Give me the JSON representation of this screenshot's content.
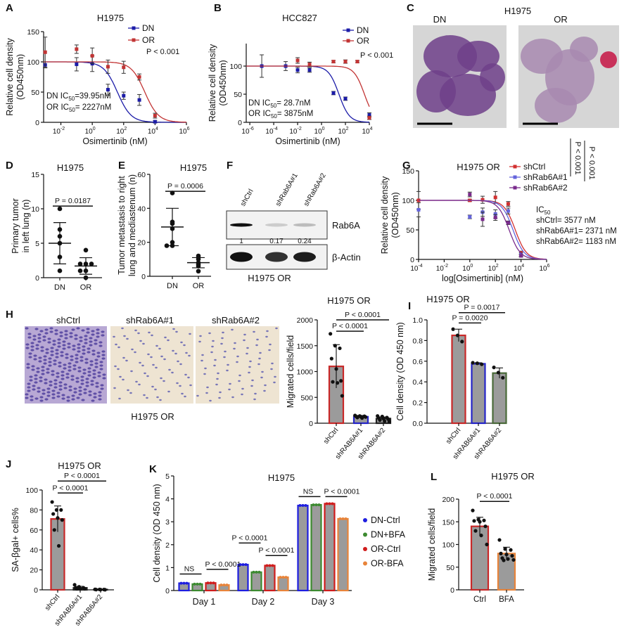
{
  "chart_data": [
    {
      "panel": "A",
      "type": "dose_response",
      "title": "H1975",
      "xlabel": "Osimertinib (nM)",
      "ylabel": "Relative cell density",
      "ylabel2": "(OD450nm)",
      "xtick_base": "10",
      "xticks": [
        "-2",
        "0",
        "2",
        "4",
        "6"
      ],
      "yticks": [
        "0",
        "50",
        "100",
        "150"
      ],
      "ylim": [
        0,
        150
      ],
      "series": [
        {
          "name": "DN",
          "color": "#1c1ca8",
          "ic50": 39.95,
          "points": [
            [
              0.001,
              95,
              5
            ],
            [
              0.1,
              96,
              11
            ],
            [
              1,
              97,
              13
            ],
            [
              10,
              54,
              9
            ],
            [
              100,
              44,
              6
            ],
            [
              1000,
              37,
              9
            ],
            [
              10000,
              1,
              2
            ]
          ]
        },
        {
          "name": "OR",
          "color": "#c23434",
          "ic50": 2227,
          "points": [
            [
              0.001,
              116,
              25
            ],
            [
              0.1,
              121,
              7
            ],
            [
              1,
              110,
              13
            ],
            [
              10,
              92,
              11
            ],
            [
              100,
              91,
              10
            ],
            [
              1000,
              75,
              5
            ],
            [
              10000,
              11,
              4
            ]
          ]
        }
      ],
      "notes": [
        "P < 0.001"
      ],
      "ic50_lines": [
        {
          "pre": "DN IC",
          "sub": "50",
          "post": "=39.95nM"
        },
        {
          "pre": "OR IC",
          "sub": "50",
          "post": "= 2227nM"
        }
      ]
    },
    {
      "panel": "B",
      "type": "dose_response",
      "title": "HCC827",
      "xlabel": "Osimertinib (nM)",
      "ylabel": "Relative cell density",
      "ylabel2": "(OD450nm)",
      "xtick_base": "10",
      "xticks": [
        "-6",
        "-4",
        "-2",
        "0",
        "2",
        "4"
      ],
      "yticks": [
        "0",
        "50",
        "100"
      ],
      "ylim": [
        0,
        140
      ],
      "series": [
        {
          "name": "DN",
          "color": "#1c1ca8",
          "ic50": 28.7,
          "points": [
            [
              1e-05,
              100,
              20
            ],
            [
              0.001,
              100,
              8
            ],
            [
              0.01,
              93,
              5
            ],
            [
              0.1,
              93,
              4
            ],
            [
              10,
              52,
              3
            ],
            [
              100,
              42,
              3
            ],
            [
              10000,
              13,
              4
            ]
          ]
        },
        {
          "name": "OR",
          "color": "#c23434",
          "ic50": 3875,
          "points": [
            [
              0.01,
              110,
              5
            ],
            [
              0.1,
              103,
              4
            ],
            [
              10,
              108,
              2
            ],
            [
              100,
              108,
              3
            ],
            [
              1000,
              108,
              2
            ],
            [
              10000,
              8,
              3
            ]
          ]
        }
      ],
      "notes": [
        "P < 0.001"
      ],
      "ic50_lines": [
        {
          "pre": "DN IC",
          "sub": "50",
          "post": "= 28.7nM"
        },
        {
          "pre": "OR IC",
          "sub": "50",
          "post": "= 3875nM"
        }
      ]
    },
    {
      "panel": "C",
      "type": "histology",
      "title": "H1975",
      "labels": [
        "DN",
        "OR"
      ]
    },
    {
      "panel": "D",
      "type": "dot",
      "title": "H1975",
      "ylabel": "Primary tumor",
      "ylabel2": "in left lung (n)",
      "yticks": [
        "0",
        "5",
        "10",
        "15"
      ],
      "ylim": [
        0,
        15
      ],
      "categories": [
        "DN",
        "OR"
      ],
      "groups": [
        {
          "points": [
            10,
            7,
            6,
            5,
            3,
            1
          ],
          "mean": 5,
          "sd": 3
        },
        {
          "points": [
            4,
            2,
            2,
            2,
            1,
            1,
            0
          ],
          "mean": 1.7,
          "sd": 1.2
        }
      ],
      "sig": [
        {
          "from": 0,
          "to": 1,
          "level": 10.4,
          "label": "P = 0.0187"
        }
      ]
    },
    {
      "panel": "E",
      "type": "dot",
      "title": "H1975",
      "ylabel": "Tumor metastasis to right",
      "ylabel2": "lung and mediastenum (n)",
      "yticks": [
        "0",
        "20",
        "40",
        "60"
      ],
      "ylim": [
        0,
        60
      ],
      "categories": [
        "DN",
        "OR"
      ],
      "groups": [
        {
          "points": [
            49,
            32,
            31,
            28,
            20,
            18,
            18
          ],
          "mean": 29,
          "sd": 11
        },
        {
          "points": [
            12,
            11,
            10,
            8,
            7,
            6,
            3
          ],
          "mean": 8,
          "sd": 3
        }
      ],
      "sig": [
        {
          "from": 0,
          "to": 1,
          "level": 50,
          "label": "P = 0.0006"
        }
      ]
    },
    {
      "panel": "F",
      "type": "western_blot",
      "lanes": [
        "shCtrl",
        "shRab6A#1",
        "shRab6A#2"
      ],
      "bands": [
        {
          "name": "Rab6A",
          "intensity": [
            1,
            0.17,
            0.24
          ]
        },
        {
          "name": "β-Actin",
          "intensity": [
            1,
            0.85,
            0.95
          ]
        }
      ],
      "quant": [
        "1",
        "0.17",
        "0.24"
      ],
      "caption": "H1975 OR"
    },
    {
      "panel": "G",
      "type": "dose_response",
      "title": "H1975 OR",
      "xlabel": "log[Osimertinib] (nM)",
      "ylabel": "Relative cell density",
      "ylabel2": "(OD450nm)",
      "xtick_base": "10",
      "xticks": [
        "-4",
        "-2",
        "0",
        "2",
        "4",
        "6"
      ],
      "yticks": [
        "0",
        "50",
        "100",
        "150"
      ],
      "ylim": [
        0,
        150
      ],
      "series": [
        {
          "name": "shCtrl",
          "color": "#d23030",
          "ic50": 3577,
          "points": [
            [
              0.0001,
              100,
              15
            ],
            [
              1,
              100,
              2
            ],
            [
              10,
              101,
              6
            ],
            [
              100,
              105,
              10
            ],
            [
              1000,
              94,
              4
            ],
            [
              10000,
              11,
              3
            ]
          ]
        },
        {
          "name": "shRab6A#1",
          "color": "#6464dc",
          "ic50": 2371,
          "points": [
            [
              0.0001,
              84,
              12
            ],
            [
              1,
              72,
              3
            ],
            [
              10,
              80,
              7
            ],
            [
              100,
              77,
              7
            ],
            [
              1000,
              82,
              5
            ],
            [
              10000,
              8,
              3
            ]
          ]
        },
        {
          "name": "shRab6A#2",
          "color": "#7a2b8c",
          "ic50": 1183,
          "points": [
            [
              1,
              110,
              4
            ],
            [
              10,
              68,
              12
            ],
            [
              100,
              71,
              5
            ],
            [
              1000,
              62,
              3
            ],
            [
              10000,
              6,
              2
            ]
          ]
        }
      ],
      "notes": [
        "P < 0.001",
        "P < 0.001"
      ],
      "ic50_header": {
        "pre": "IC",
        "sub": "50"
      },
      "ic50_lines": [
        {
          "pre": "shCtrl= 3577 nM",
          "sub": "",
          "post": ""
        },
        {
          "pre": "shRab6A#1= 2371 nM",
          "sub": "",
          "post": ""
        },
        {
          "pre": "shRab6A#2= 1183 nM",
          "sub": "",
          "post": ""
        }
      ]
    },
    {
      "panel": "H",
      "type": "transwell_images",
      "labels": [
        "shCtrl",
        "shRab6A#1",
        "shRab6A#2"
      ],
      "caption": "H1975 OR"
    },
    {
      "panel": "H",
      "type": "bar",
      "title": "H1975 OR",
      "ylabel": "Migrated cells/field",
      "yticks": [
        "0",
        "500",
        "1000",
        "1500",
        "2000"
      ],
      "ylim": [
        0,
        2000
      ],
      "categories": [
        "shCtrl",
        "shRAB6A#1",
        "shRAB6A#2"
      ],
      "groups": [
        {
          "edge": "#c82828",
          "mean": 1100,
          "sd": 420,
          "points": [
            1730,
            1500,
            1450,
            1250,
            1050,
            820,
            800,
            780,
            530
          ]
        },
        {
          "edge": "#2424c8",
          "mean": 125,
          "sd": 25,
          "points": [
            150,
            140,
            135,
            130,
            125,
            120,
            110,
            100
          ]
        },
        {
          "edge": "#222222",
          "mean": 90,
          "sd": 30,
          "points": [
            140,
            130,
            110,
            100,
            90,
            80,
            60,
            40,
            30
          ]
        }
      ],
      "sig": [
        {
          "from": 0,
          "to": 1,
          "level": 1780,
          "label": "P < 0.0001"
        },
        {
          "from": 0,
          "to": 2,
          "level": 2000,
          "label": "P < 0.0001"
        }
      ]
    },
    {
      "panel": "I",
      "type": "bar",
      "title": "H1975 OR",
      "ylabel": "Cell density (OD 450 nm)",
      "yticks": [
        "0.0",
        "0.2",
        "0.4",
        "0.6",
        "0.8",
        "1.0"
      ],
      "ylim": [
        0,
        1
      ],
      "categories": [
        "shCtrl",
        "shRAB6A#1",
        "shRAB6A#2"
      ],
      "groups": [
        {
          "edge": "#c82828",
          "mean": 0.85,
          "sd": 0.06,
          "points": [
            0.91,
            0.85,
            0.79
          ]
        },
        {
          "edge": "#2424c8",
          "mean": 0.575,
          "sd": 0.01,
          "points": [
            0.585,
            0.58,
            0.57
          ]
        },
        {
          "edge": "#4a6a3a",
          "mean": 0.485,
          "sd": 0.05,
          "points": [
            0.54,
            0.49,
            0.44
          ]
        }
      ],
      "sig": [
        {
          "from": 0,
          "to": 1,
          "level": 0.97,
          "label": "P = 0.0020"
        },
        {
          "from": 0,
          "to": 2,
          "level": 1.07,
          "label": "P = 0.0017"
        }
      ]
    },
    {
      "panel": "J",
      "type": "bar",
      "title": "H1975 OR",
      "ylabel": "SA-βgal+ cells%",
      "yticks": [
        "0",
        "20",
        "40",
        "60",
        "80",
        "100"
      ],
      "ylim": [
        0,
        100
      ],
      "categories": [
        "shCtrl",
        "shRAB6A#1",
        "shRAB6A#2"
      ],
      "groups": [
        {
          "edge": "#c82828",
          "mean": 71,
          "sd": 13,
          "points": [
            88,
            80,
            80,
            76,
            72,
            70,
            60,
            44
          ]
        },
        {
          "edge": "#222222",
          "mean": 2,
          "sd": 1.5,
          "points": [
            5,
            3,
            2,
            2,
            1,
            1,
            1
          ]
        },
        {
          "edge": "#222222",
          "mean": 0.3,
          "sd": 0.3,
          "points": [
            0.5,
            0.4,
            0.3,
            0.2,
            0.2,
            0.1
          ]
        }
      ],
      "sig": [
        {
          "from": 0,
          "to": 1,
          "level": 97,
          "label": "P < 0.0001"
        },
        {
          "from": 0,
          "to": 2,
          "level": 109,
          "label": "P < 0.0001"
        }
      ]
    },
    {
      "panel": "K",
      "type": "grouped_bar",
      "title": "H1975",
      "ylabel": "Cell density (OD 450 nm)",
      "yticks": [
        "0",
        "1",
        "2",
        "3",
        "4",
        "5"
      ],
      "ylim": [
        0,
        5
      ],
      "categories": [
        "Day 1",
        "Day 2",
        "Day 3"
      ],
      "series": [
        {
          "name": "DN-Ctrl",
          "color": "#1e1ee0",
          "values": [
            0.32,
            1.13,
            3.71
          ]
        },
        {
          "name": "DN+BFA",
          "color": "#3c8a30",
          "values": [
            0.28,
            0.8,
            3.74
          ]
        },
        {
          "name": "OR-Ctrl",
          "color": "#d01c1c",
          "values": [
            0.33,
            1.09,
            3.79
          ]
        },
        {
          "name": "OR-BFA",
          "color": "#e8843a",
          "values": [
            0.24,
            0.58,
            3.13
          ]
        }
      ],
      "sig": [
        {
          "group": 0,
          "from": 0,
          "to": 1,
          "level": 0.72,
          "label": "NS"
        },
        {
          "group": 0,
          "from": 2,
          "to": 3,
          "level": 0.8,
          "label": "P < 0.0001"
        },
        {
          "group": 1,
          "from": 0,
          "to": 1,
          "level": 1.95,
          "label": "P < 0.0001"
        },
        {
          "group": 1,
          "from": 2,
          "to": 3,
          "level": 1.62,
          "label": "P < 0.0001"
        },
        {
          "group": 2,
          "from": 0,
          "to": 1,
          "level": 4.1,
          "label": "NS"
        },
        {
          "group": 2,
          "from": 2,
          "to": 3,
          "level": 4.1,
          "label": "P < 0.0001"
        }
      ]
    },
    {
      "panel": "L",
      "type": "bar",
      "title": "H1975 OR",
      "ylabel": "Migrated cells/field",
      "yticks": [
        "0",
        "50",
        "100",
        "150",
        "200"
      ],
      "ylim": [
        0,
        200
      ],
      "categories": [
        "Ctrl",
        "BFA"
      ],
      "groups": [
        {
          "edge": "#c82828",
          "mean": 140,
          "sd": 20,
          "points": [
            175,
            155,
            153,
            152,
            150,
            140,
            130,
            120,
            100
          ]
        },
        {
          "edge": "#e8843a",
          "mean": 80,
          "sd": 14,
          "points": [
            110,
            90,
            88,
            80,
            78,
            75,
            70,
            68,
            66,
            65
          ]
        }
      ],
      "sig": [
        {
          "from": 0,
          "to": 1,
          "level": 195,
          "label": "P < 0.0001"
        }
      ]
    }
  ]
}
